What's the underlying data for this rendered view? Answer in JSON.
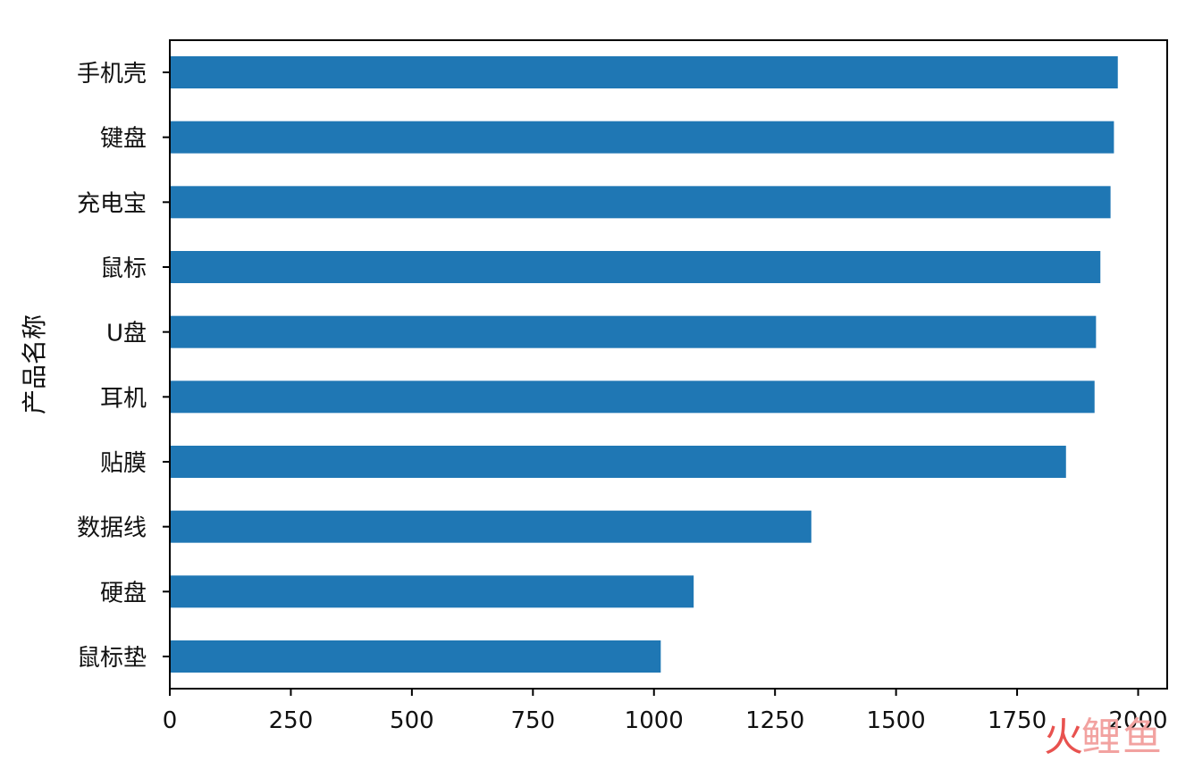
{
  "chart_data": {
    "type": "bar",
    "orientation": "horizontal",
    "categories": [
      "手机壳",
      "键盘",
      "充电宝",
      "鼠标",
      "U盘",
      "耳机",
      "贴膜",
      "数据线",
      "硬盘",
      "鼠标垫"
    ],
    "values": [
      1958,
      1950,
      1943,
      1922,
      1913,
      1910,
      1851,
      1325,
      1082,
      1014
    ],
    "title": "",
    "xlabel": "",
    "ylabel": "产品名称",
    "xlim": [
      0,
      2060
    ],
    "xticks": [
      "0",
      "250",
      "500",
      "750",
      "1000",
      "1250",
      "1500",
      "1750",
      "2000"
    ],
    "grid": false,
    "bar_color": "#1f77b4"
  },
  "watermark": {
    "text_a": "火",
    "text_b": "鲤",
    "text_c": "鱼"
  }
}
